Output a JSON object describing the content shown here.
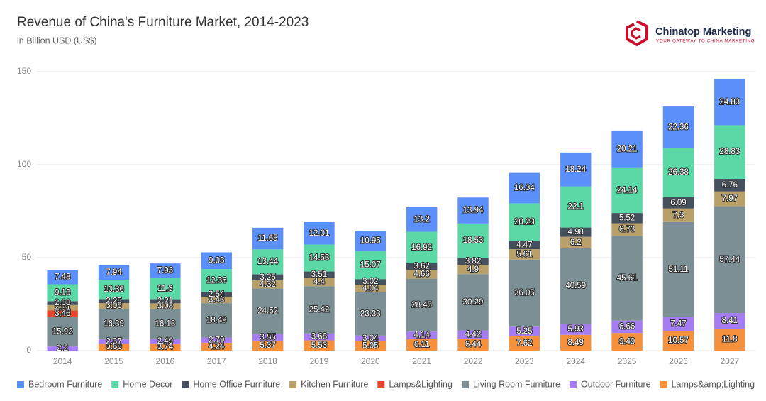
{
  "brand": {
    "name": "Chinatop Marketing",
    "tagline": "YOUR GATEWAY TO CHINA MARKETING"
  },
  "chart_data": {
    "type": "stacked_bar",
    "title": "Revenue of China's Furniture Market, 2014-2023",
    "subtitle": "in Billion USD  (US$)",
    "categories": [
      "2014",
      "2015",
      "2016",
      "2017",
      "2018",
      "2019",
      "2020",
      "2021",
      "2022",
      "2023",
      "2024",
      "2025",
      "2026",
      "2027"
    ],
    "ylim": [
      0,
      150
    ],
    "yticks": [
      0,
      50,
      100,
      150
    ],
    "grid": true,
    "legend": "bottom",
    "series": [
      {
        "name": "Bedroom Furniture",
        "color": "#5b8ff9",
        "values": [
          7.48,
          7.94,
          7.93,
          9.03,
          11.65,
          12.01,
          10.95,
          13.2,
          13.94,
          16.34,
          18.24,
          20.21,
          22.36,
          24.83
        ]
      },
      {
        "name": "Home Decor",
        "color": "#5ad8a6",
        "values": [
          9.13,
          10.36,
          11.3,
          12.36,
          13.44,
          14.53,
          15.07,
          16.92,
          18.53,
          20.23,
          22.1,
          24.14,
          26.38,
          28.83
        ]
      },
      {
        "name": "Home Office Furniture",
        "color": "#45505e",
        "values": [
          2.08,
          2.25,
          2.21,
          2.54,
          3.25,
          3.51,
          3.02,
          3.62,
          3.82,
          4.47,
          4.98,
          5.52,
          6.09,
          6.76
        ]
      },
      {
        "name": "Kitchen Furniture",
        "color": "#b9a068",
        "values": [
          2.91,
          3.06,
          3.08,
          3.43,
          4.32,
          4.4,
          4.04,
          4.66,
          4.9,
          5.61,
          6.2,
          6.73,
          7.3,
          7.97
        ]
      },
      {
        "name": "Lamps&Lighting",
        "color": "#e8452c",
        "values": [
          3.46,
          null,
          null,
          null,
          null,
          null,
          null,
          null,
          null,
          null,
          null,
          null,
          null,
          null
        ]
      },
      {
        "name": "Living Room Furniture",
        "color": "#7b8f94",
        "values": [
          15.92,
          16.39,
          16.13,
          18.49,
          24.52,
          25.42,
          23.33,
          28.45,
          30.29,
          36.05,
          40.59,
          45.61,
          51.11,
          57.44
        ]
      },
      {
        "name": "Outdoor Furniture",
        "color": "#a67cf2",
        "values": [
          2.2,
          2.37,
          2.49,
          2.79,
          3.55,
          3.68,
          3.04,
          4.14,
          4.42,
          5.25,
          5.93,
          6.66,
          7.47,
          8.41
        ]
      },
      {
        "name": "Lamps&amp;Lighting",
        "color": "#f5903d",
        "values": [
          null,
          3.68,
          3.74,
          4.24,
          5.37,
          5.53,
          5.05,
          6.11,
          6.44,
          7.62,
          8.49,
          9.49,
          10.57,
          11.8
        ]
      }
    ]
  }
}
